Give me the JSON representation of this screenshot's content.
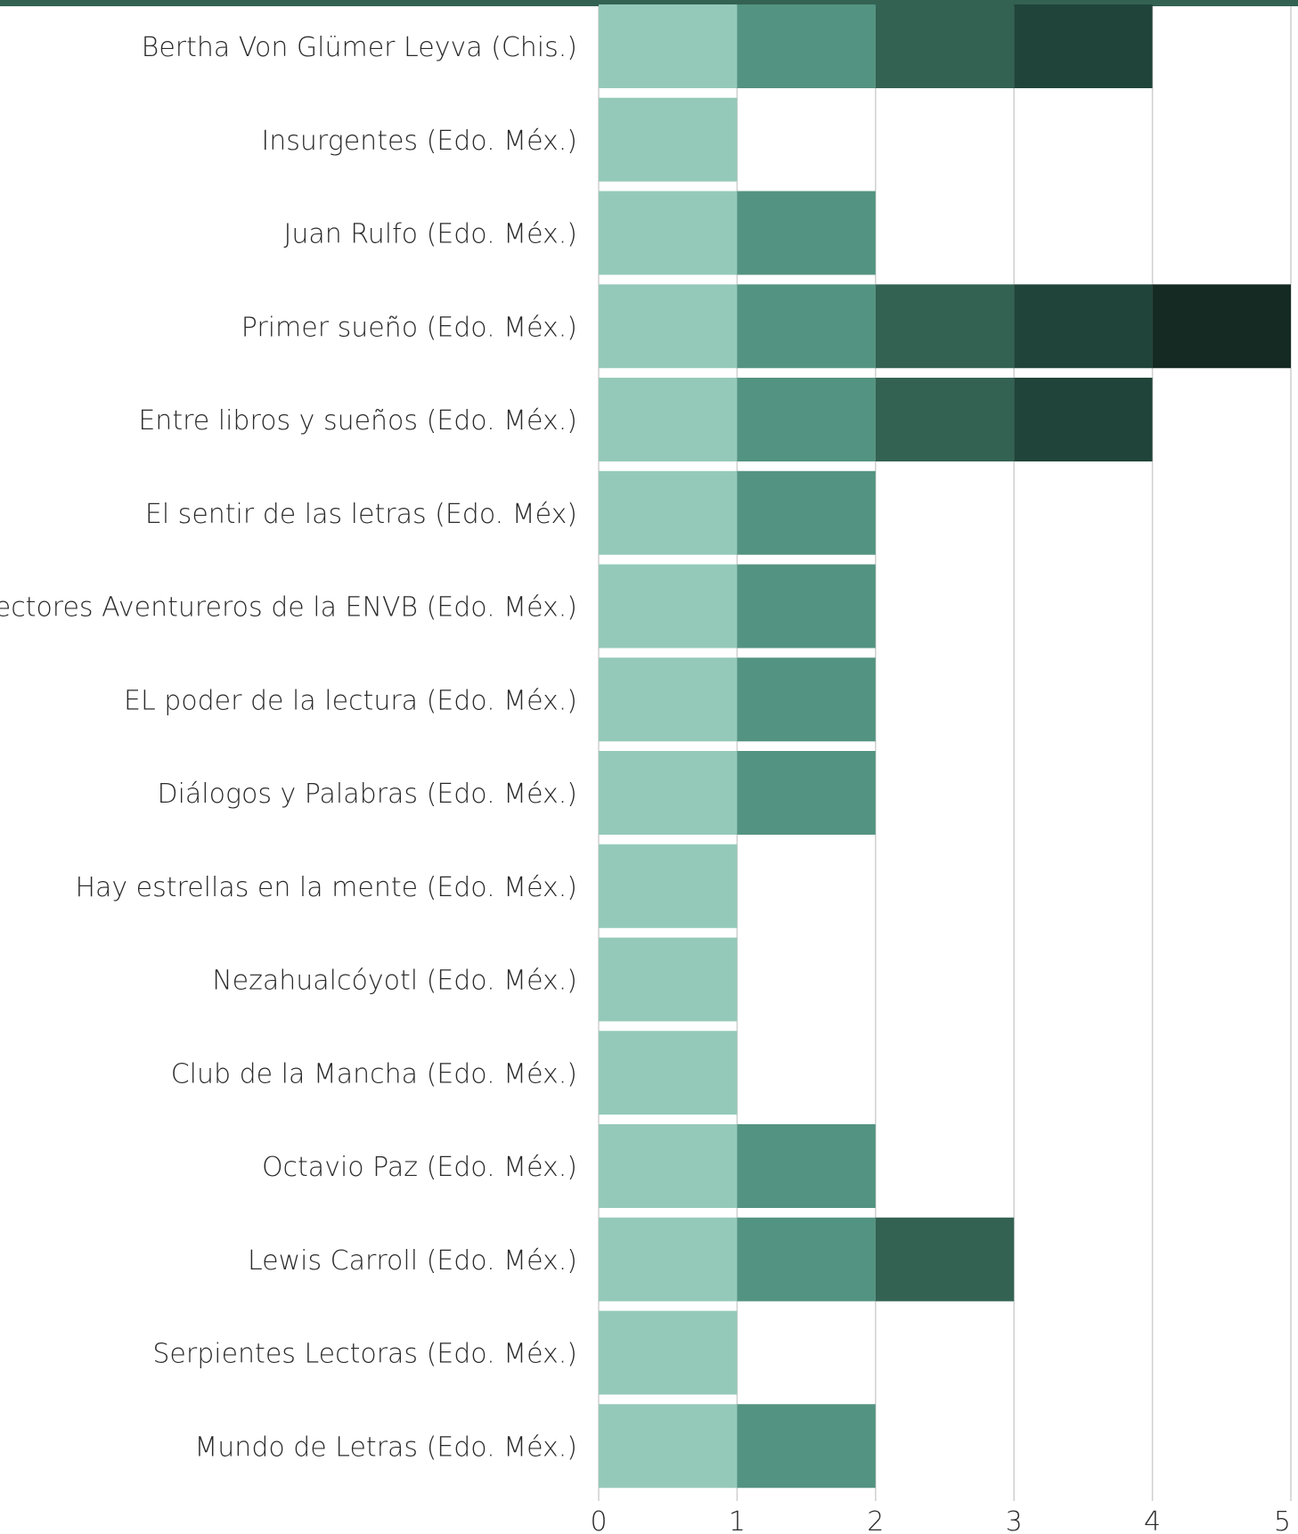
{
  "chart_data": {
    "type": "bar",
    "orientation": "horizontal",
    "stacked": true,
    "categories": [
      "Bertha Von Glümer Leyva (Chis.)",
      "Insurgentes (Edo. Méx.)",
      "Juan Rulfo (Edo. Méx.)",
      "Primer sueño (Edo. Méx.)",
      "Entre libros y sueños (Edo. Méx.)",
      "El sentir de las letras (Edo. Méx)",
      "Lectores Aventureros de la ENVB (Edo. Méx.)",
      "EL poder de la lectura (Edo. Méx.)",
      "Diálogos y Palabras (Edo. Méx.)",
      "Hay estrellas en la mente (Edo. Méx.)",
      "Nezahualcóyotl (Edo. Méx.)",
      "Club de la Mancha (Edo. Méx.)",
      "Octavio Paz (Edo. Méx.)",
      "Lewis Carroll (Edo. Méx.)",
      "Serpientes Lectoras (Edo. Méx.)",
      "Mundo de Letras (Edo. Méx.)"
    ],
    "values": [
      4,
      1,
      2,
      5,
      4,
      2,
      2,
      2,
      2,
      1,
      1,
      1,
      2,
      3,
      1,
      2
    ],
    "segment_colors": [
      "#94c9b9",
      "#539381",
      "#336253",
      "#20443a",
      "#142a22"
    ],
    "xlim": [
      0,
      5
    ],
    "xticks": [
      "0",
      "1",
      "2",
      "3",
      "4",
      "5"
    ],
    "grid": true,
    "header_bar_color": "#336253",
    "title": "",
    "xlabel": "",
    "ylabel": ""
  }
}
